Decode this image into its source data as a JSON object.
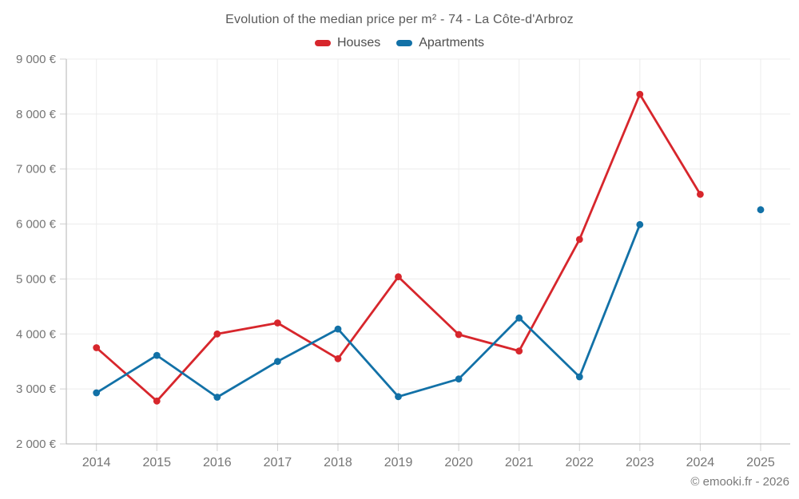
{
  "chart": {
    "title": "Evolution of the median price per m² - 74 - La Côte-d'Arbroz",
    "copyright": "© emooki.fr - 2026"
  },
  "legend": {
    "items": [
      {
        "label": "Houses",
        "color": "#d7262c"
      },
      {
        "label": "Apartments",
        "color": "#1271a7"
      }
    ]
  },
  "chart_data": {
    "type": "line",
    "title": "Evolution of the median price per m² - 74 - La Côte-d'Arbroz",
    "xlabel": "",
    "ylabel": "",
    "x": [
      "2014",
      "2015",
      "2016",
      "2017",
      "2018",
      "2019",
      "2020",
      "2021",
      "2022",
      "2023",
      "2024",
      "2025"
    ],
    "series": [
      {
        "name": "Houses",
        "color": "#d7262c",
        "values": [
          3750,
          2780,
          4000,
          4200,
          3550,
          5040,
          3990,
          3690,
          5720,
          8360,
          6540,
          null
        ]
      },
      {
        "name": "Apartments",
        "color": "#1271a7",
        "values": [
          2930,
          3610,
          2850,
          3500,
          4090,
          2860,
          3180,
          4290,
          3220,
          5990,
          null,
          6260
        ]
      }
    ],
    "ylim": [
      2000,
      9000
    ],
    "y_ticks": [
      {
        "value": 2000,
        "label": "2 000 €"
      },
      {
        "value": 3000,
        "label": "3 000 €"
      },
      {
        "value": 4000,
        "label": "4 000 €"
      },
      {
        "value": 5000,
        "label": "5 000 €"
      },
      {
        "value": 6000,
        "label": "6 000 €"
      },
      {
        "value": 7000,
        "label": "7 000 €"
      },
      {
        "value": 8000,
        "label": "8 000 €"
      },
      {
        "value": 9000,
        "label": "9 000 €"
      }
    ],
    "grid": true,
    "legend_position": "top",
    "currency": "€"
  },
  "colors": {
    "grid_line": "#ececec",
    "axis_line": "#b3b3b3",
    "tick_mark": "#cfcfcf",
    "tick_label": "#757575",
    "title_text": "#5a5a5a"
  }
}
